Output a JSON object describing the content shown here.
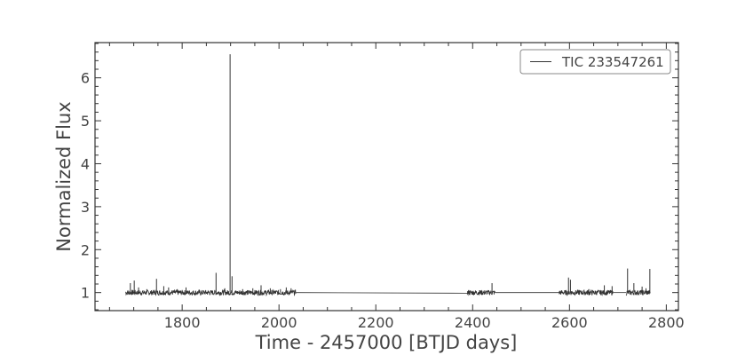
{
  "chart_data": {
    "type": "line",
    "title": "",
    "xlabel": "Time - 2457000 [BTJD days]",
    "ylabel": "Normalized Flux",
    "xlim": [
      1620,
      2825
    ],
    "ylim": [
      0.58,
      6.82
    ],
    "x_ticks": [
      1800,
      2000,
      2200,
      2400,
      2600,
      2800
    ],
    "y_ticks": [
      1,
      2,
      3,
      4,
      5,
      6
    ],
    "grid": false,
    "legend": {
      "position": "top-right",
      "entries": [
        "TIC 233547261"
      ]
    },
    "series": [
      {
        "name": "TIC 233547261",
        "color": "#333333",
        "baseline": 1.0,
        "segments": [
          {
            "x_start": 1683,
            "x_end": 2035
          },
          {
            "x_start": 2389,
            "x_end": 2446
          },
          {
            "x_start": 2578,
            "x_end": 2690
          },
          {
            "x_start": 2717,
            "x_end": 2767
          }
        ],
        "gap_connectors": [
          [
            2035,
            1.0,
            2389,
            0.985
          ],
          [
            2446,
            1.0,
            2578,
            1.0
          ],
          [
            2690,
            1.0,
            2717,
            1.0
          ]
        ],
        "flares": [
          [
            1693,
            1.22
          ],
          [
            1701,
            1.28
          ],
          [
            1710,
            1.12
          ],
          [
            1727,
            1.08
          ],
          [
            1747,
            1.32
          ],
          [
            1762,
            1.15
          ],
          [
            1772,
            1.12
          ],
          [
            1790,
            1.08
          ],
          [
            1808,
            1.12
          ],
          [
            1835,
            1.07
          ],
          [
            1870,
            1.46
          ],
          [
            1888,
            1.1
          ],
          [
            1899,
            6.55
          ],
          [
            1903,
            1.38
          ],
          [
            1925,
            1.08
          ],
          [
            1946,
            1.1
          ],
          [
            1963,
            1.17
          ],
          [
            1982,
            1.1
          ],
          [
            2003,
            1.08
          ],
          [
            2015,
            1.12
          ],
          [
            2025,
            1.1
          ],
          [
            2392,
            1.06
          ],
          [
            2415,
            1.05
          ],
          [
            2440,
            1.22
          ],
          [
            2584,
            1.05
          ],
          [
            2598,
            1.35
          ],
          [
            2602,
            1.3
          ],
          [
            2620,
            1.06
          ],
          [
            2640,
            1.08
          ],
          [
            2672,
            1.17
          ],
          [
            2688,
            1.15
          ],
          [
            2720,
            1.56
          ],
          [
            2733,
            1.22
          ],
          [
            2750,
            1.14
          ],
          [
            2758,
            1.1
          ],
          [
            2766,
            1.55
          ]
        ]
      }
    ]
  }
}
